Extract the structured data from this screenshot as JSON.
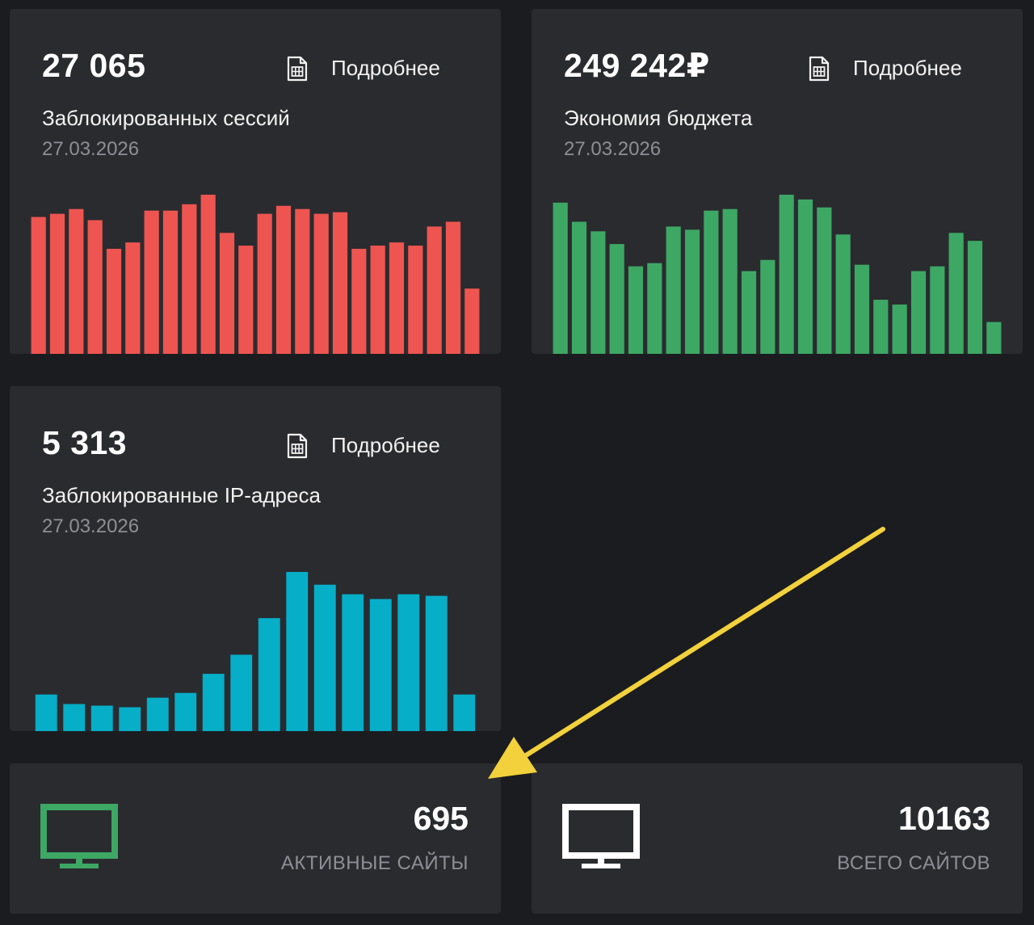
{
  "cards": [
    {
      "value": "27 065",
      "title": "Заблокированных сессий",
      "date": "27.03.2026",
      "more_label": "Подробнее",
      "icon": "spreadsheet-doc-icon",
      "color": "#ee5550",
      "chart_data": {
        "type": "bar",
        "values": [
          86,
          88,
          91,
          84,
          66,
          70,
          90,
          90,
          94,
          100,
          76,
          68,
          88,
          93,
          91,
          88,
          89,
          66,
          68,
          70,
          68,
          80,
          83,
          41
        ],
        "ylim": [
          0,
          100
        ]
      }
    },
    {
      "value": "249 242₽",
      "title": "Экономия бюджета",
      "date": "27.03.2026",
      "more_label": "Подробнее",
      "icon": "spreadsheet-doc-icon",
      "color": "#3da764",
      "chart_data": {
        "type": "bar",
        "values": [
          95,
          83,
          77,
          69,
          55,
          57,
          80,
          78,
          90,
          91,
          52,
          59,
          100,
          97,
          92,
          75,
          56,
          34,
          31,
          52,
          55,
          76,
          71,
          20
        ],
        "ylim": [
          0,
          100
        ]
      }
    },
    {
      "value": "5 313",
      "title": "Заблокированные IP-адреса",
      "date": "27.03.2026",
      "more_label": "Подробнее",
      "icon": "spreadsheet-doc-icon",
      "color": "#06aec8",
      "chart_data": {
        "type": "bar",
        "values": [
          23,
          17,
          16,
          15,
          21,
          24,
          36,
          48,
          71,
          100,
          92,
          86,
          83,
          86,
          85,
          23
        ],
        "ylim": [
          0,
          100
        ]
      }
    }
  ],
  "stats": [
    {
      "value": "695",
      "label": "АКТИВНЫЕ САЙТЫ",
      "icon": "monitor-icon",
      "icon_color": "#3da764"
    },
    {
      "value": "10163",
      "label": "ВСЕГО САЙТОВ",
      "icon": "monitor-icon",
      "icon_color": "#ffffff"
    }
  ],
  "annotation": {
    "icon": "arrow-annotation",
    "color": "#f2d13c"
  }
}
